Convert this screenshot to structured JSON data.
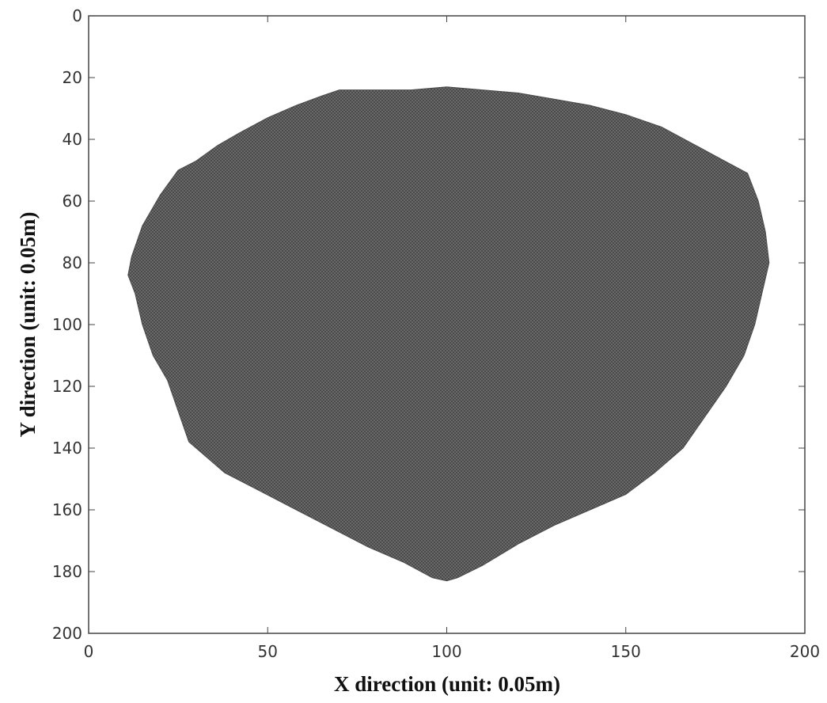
{
  "chart_data": {
    "type": "area",
    "title": "",
    "xlabel": "X direction (unit: 0.05m)",
    "ylabel": "Y direction (unit: 0.05m)",
    "xlim": [
      0,
      200
    ],
    "ylim": [
      0,
      200
    ],
    "y_axis_reversed": true,
    "grid": false,
    "x_ticks": [
      "0",
      "50",
      "100",
      "150",
      "200"
    ],
    "y_ticks": [
      "0",
      "20",
      "40",
      "60",
      "80",
      "100",
      "120",
      "140",
      "160",
      "180",
      "200"
    ],
    "region_color": "#606060",
    "series": [
      {
        "boundary": [
          [
            70,
            24
          ],
          [
            80,
            24
          ],
          [
            90,
            24
          ],
          [
            100,
            23
          ],
          [
            110,
            24
          ],
          [
            120,
            25
          ],
          [
            130,
            27
          ],
          [
            140,
            29
          ],
          [
            150,
            32
          ],
          [
            160,
            36
          ],
          [
            168,
            41
          ],
          [
            176,
            46
          ],
          [
            184,
            51
          ],
          [
            187,
            60
          ],
          [
            189,
            70
          ],
          [
            190,
            80
          ],
          [
            188,
            90
          ],
          [
            186,
            100
          ],
          [
            183,
            110
          ],
          [
            178,
            120
          ],
          [
            172,
            130
          ],
          [
            166,
            140
          ],
          [
            158,
            148
          ],
          [
            150,
            155
          ],
          [
            140,
            160
          ],
          [
            130,
            165
          ],
          [
            120,
            171
          ],
          [
            110,
            178
          ],
          [
            103,
            182
          ],
          [
            100,
            183
          ],
          [
            96,
            182
          ],
          [
            88,
            177
          ],
          [
            78,
            172
          ],
          [
            68,
            166
          ],
          [
            58,
            160
          ],
          [
            48,
            154
          ],
          [
            38,
            148
          ],
          [
            28,
            138
          ],
          [
            25,
            128
          ],
          [
            22,
            118
          ],
          [
            18,
            110
          ],
          [
            15,
            100
          ],
          [
            13,
            90
          ],
          [
            11,
            84
          ],
          [
            12,
            78
          ],
          [
            15,
            68
          ],
          [
            20,
            58
          ],
          [
            25,
            50
          ],
          [
            30,
            47
          ],
          [
            36,
            42
          ],
          [
            42,
            38
          ],
          [
            50,
            33
          ],
          [
            58,
            29
          ],
          [
            65,
            26
          ]
        ]
      }
    ]
  }
}
